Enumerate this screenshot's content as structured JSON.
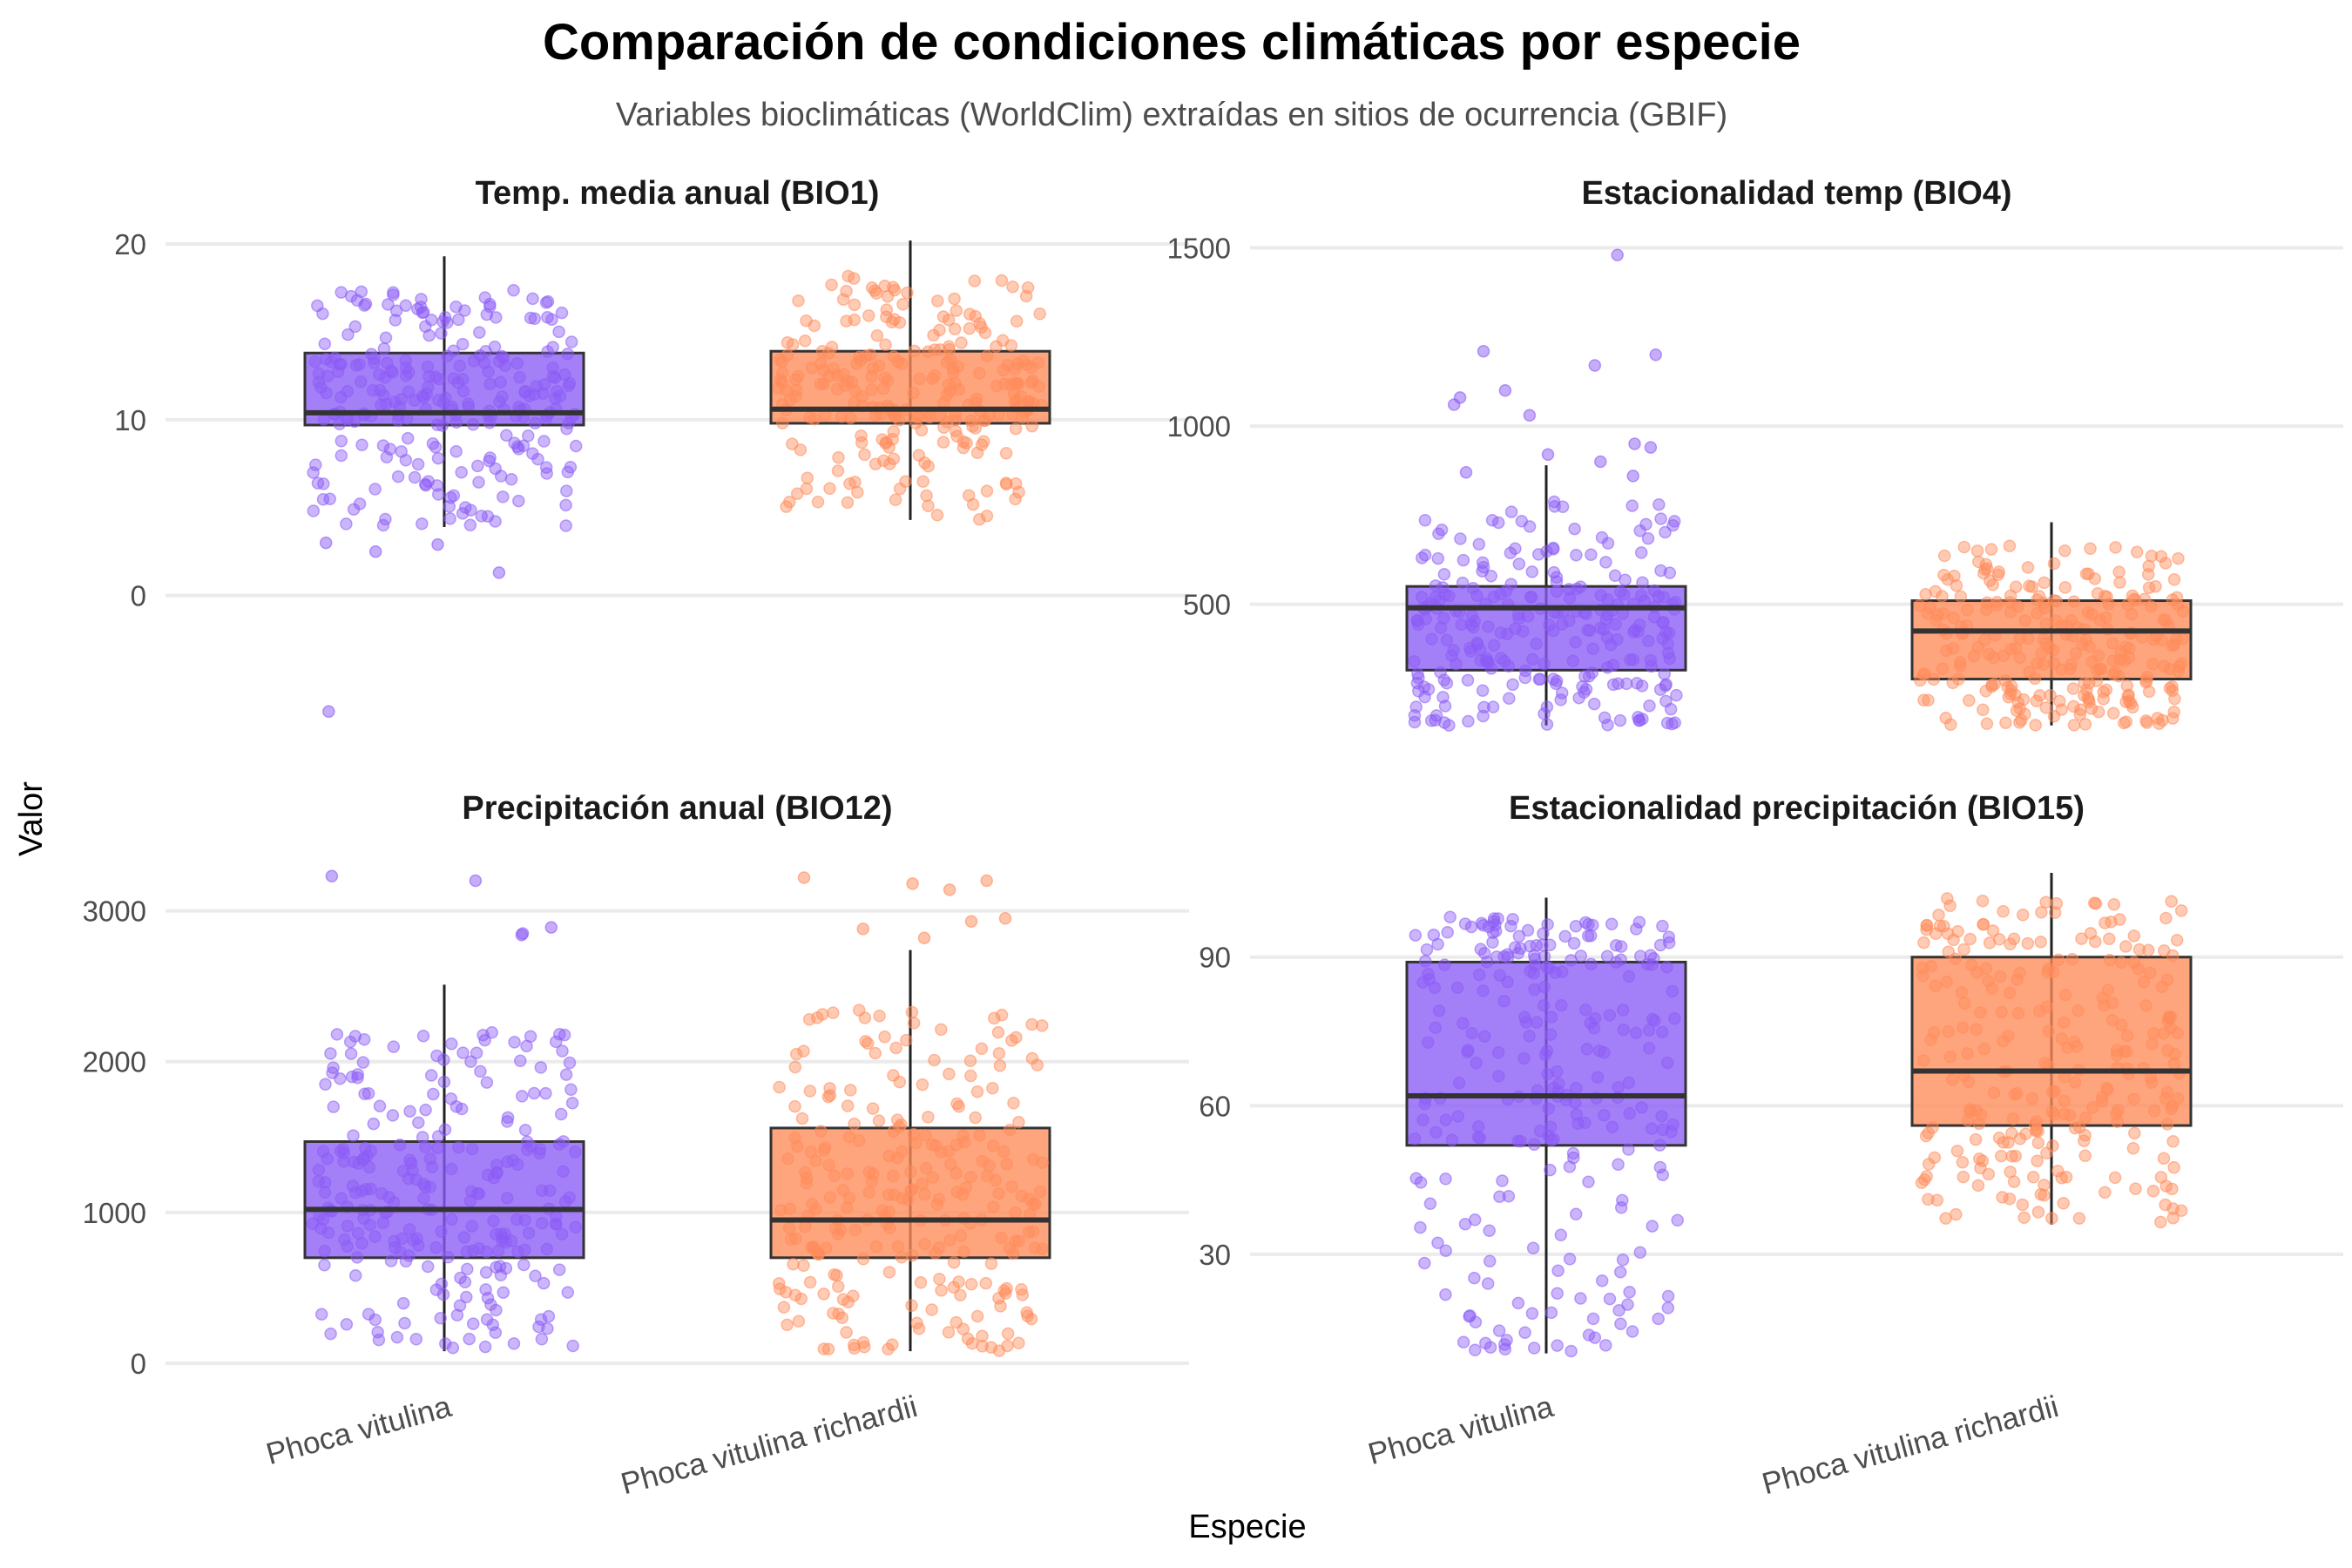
{
  "chart_data": {
    "type": "box",
    "title": "Comparación de condiciones climáticas por especie",
    "subtitle": "Variables bioclimáticas (WorldClim) extraídas en sitios de ocurrencia (GBIF)",
    "xlabel": "Especie",
    "ylabel": "Valor",
    "categories": [
      "Phoca vitulina",
      "Phoca vitulina richardii"
    ],
    "colors": {
      "Phoca vitulina": "#8B5CF6",
      "Phoca vitulina richardii": "#FF8C5A"
    },
    "facets": [
      {
        "title": "Temp. media anual (BIO1)",
        "ylim": [
          -8,
          21
        ],
        "ticks": [
          0,
          10,
          20
        ],
        "boxes": [
          {
            "category": "Phoca vitulina",
            "whisker_low": 3.9,
            "q1": 9.7,
            "median": 10.4,
            "q3": 13.8,
            "whisker_high": 19.3,
            "outliers": [
              2.9,
              2.5,
              1.3,
              3.0,
              -6.6
            ]
          },
          {
            "category": "Phoca vitulina richardii",
            "whisker_low": 4.3,
            "q1": 9.8,
            "median": 10.6,
            "q3": 13.9,
            "whisker_high": 20.2,
            "outliers": []
          }
        ]
      },
      {
        "title": "Estacionalidad temp (BIO4)",
        "ylim": [
          130,
          1560
        ],
        "ticks": [
          500,
          1000,
          1500
        ],
        "boxes": [
          {
            "category": "Phoca vitulina",
            "whisker_low": 160,
            "q1": 315,
            "median": 490,
            "q3": 550,
            "whisker_high": 890,
            "outliers": [
              1480,
              1210,
              1200,
              1170,
              1100,
              1080,
              1060,
              1030,
              950,
              940,
              920,
              900,
              870,
              860
            ]
          },
          {
            "category": "Phoca vitulina richardii",
            "whisker_low": 160,
            "q1": 290,
            "median": 425,
            "q3": 510,
            "whisker_high": 730,
            "outliers": []
          }
        ]
      },
      {
        "title": "Precipitación anual (BIO12)",
        "ylim": [
          0,
          3350
        ],
        "ticks": [
          0,
          1000,
          2000,
          3000
        ],
        "boxes": [
          {
            "category": "Phoca vitulina",
            "whisker_low": 80,
            "q1": 700,
            "median": 1020,
            "q3": 1470,
            "whisker_high": 2510,
            "outliers": [
              3230,
              3200,
              2890,
              2850,
              2840
            ]
          },
          {
            "category": "Phoca vitulina richardii",
            "whisker_low": 80,
            "q1": 700,
            "median": 950,
            "q3": 1560,
            "whisker_high": 2740,
            "outliers": [
              3220,
              3200,
              3180,
              3140,
              2950,
              2930,
              2880,
              2820
            ]
          }
        ]
      },
      {
        "title": "Estacionalidad precipitación (BIO15)",
        "ylim": [
          8,
          110
        ],
        "ticks": [
          30,
          60,
          90
        ],
        "boxes": [
          {
            "category": "Phoca vitulina",
            "whisker_low": 10,
            "q1": 52,
            "median": 62,
            "q3": 89,
            "whisker_high": 102,
            "outliers": []
          },
          {
            "category": "Phoca vitulina richardii",
            "whisker_low": 36,
            "q1": 56,
            "median": 67,
            "q3": 90,
            "whisker_high": 107,
            "outliers": []
          }
        ]
      }
    ]
  }
}
